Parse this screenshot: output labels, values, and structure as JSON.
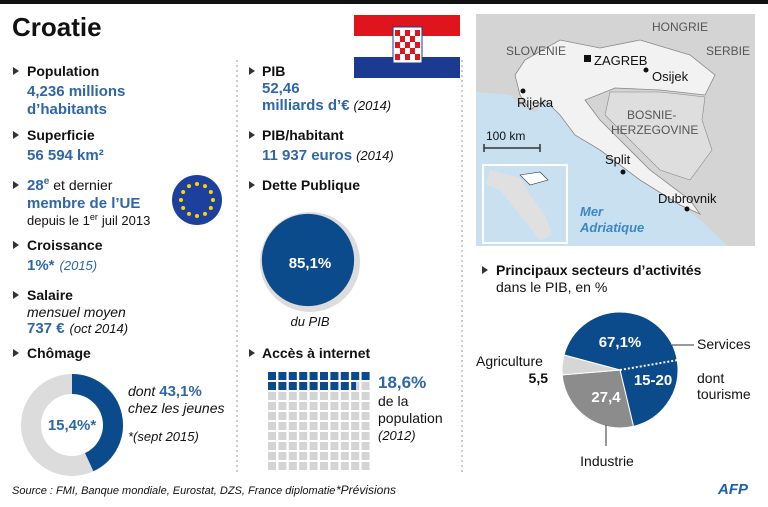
{
  "title": "Croatie",
  "left": {
    "population": {
      "label": "Population",
      "lines": [
        "4,236 millions",
        "d’habitants"
      ]
    },
    "superficie": {
      "label": "Superficie",
      "value": "56 594 km²"
    },
    "ue": {
      "rank": "28",
      "rank_sup": "e",
      "rank_text": "et dernier",
      "member": "membre de l’UE",
      "since_pre": "depuis le 1",
      "since_sup": "er",
      "since_post": "juil 2013"
    },
    "croissance": {
      "label": "Croissance",
      "value": "1%*",
      "note": "(2015)"
    },
    "salaire": {
      "label": "Salaire",
      "sub": "mensuel moyen",
      "value": "737 €",
      "note": "(oct 2014)"
    },
    "chomage": {
      "label": "Chômage",
      "value": 15.4,
      "value_label": "15,4%*",
      "youth_pre": "dont",
      "youth_value": 43.1,
      "youth_label": "43,1%",
      "youth_text": "chez les jeunes",
      "note": "*(sept 2015)"
    }
  },
  "mid": {
    "pib": {
      "label": "PIB",
      "lines": [
        "52,46",
        "milliards d’€"
      ],
      "year": "(2014)"
    },
    "pib_hab": {
      "label": "PIB/habitant",
      "value": "11 937 euros",
      "year": "(2014)"
    },
    "dette": {
      "label": "Dette Publique",
      "value": 85.1,
      "value_label": "85,1%",
      "caption": "du PIB"
    },
    "internet": {
      "label": "Accès à internet",
      "value": 18.6,
      "value_label": "18,6%",
      "lines": [
        "de la",
        "population"
      ],
      "year": "(2012)"
    }
  },
  "map": {
    "labels": {
      "hongrie": "HONGRIE",
      "slovenie": "SLOVENIE",
      "serbie": "SERBIE",
      "zagreb": "ZAGREB",
      "osijek": "Osijek",
      "rijeka": "Rijeka",
      "bosnie1": "BOSNIE-",
      "bosnie2": "HERZEGOVINE",
      "scale": "100 km",
      "split": "Split",
      "dubrovnik": "Dubrovnik",
      "mer1": "Mer",
      "mer2": "Adriatique"
    }
  },
  "sectors": {
    "title": "Principaux secteurs d’activités",
    "subtitle": "dans le PIB, en %",
    "slices": [
      {
        "name": "Services",
        "value": 67.1,
        "value_label": "67,1%",
        "color": "#0b4a8b"
      },
      {
        "name": "Industrie",
        "value": 27.4,
        "value_label": "27,4",
        "color": "#8c8c8c"
      },
      {
        "name": "Agriculture",
        "value": 5.5,
        "value_label": "5,5",
        "color": "#d6d6d6"
      }
    ],
    "tourism": {
      "value_label": "15-20",
      "lines": [
        "dont",
        "tourisme"
      ]
    }
  },
  "footer": {
    "source": "Source : FMI, Banque mondiale, Eurostat, DZS, France diplomatie",
    "note": "*Prévisions",
    "logo": "AFP"
  }
}
